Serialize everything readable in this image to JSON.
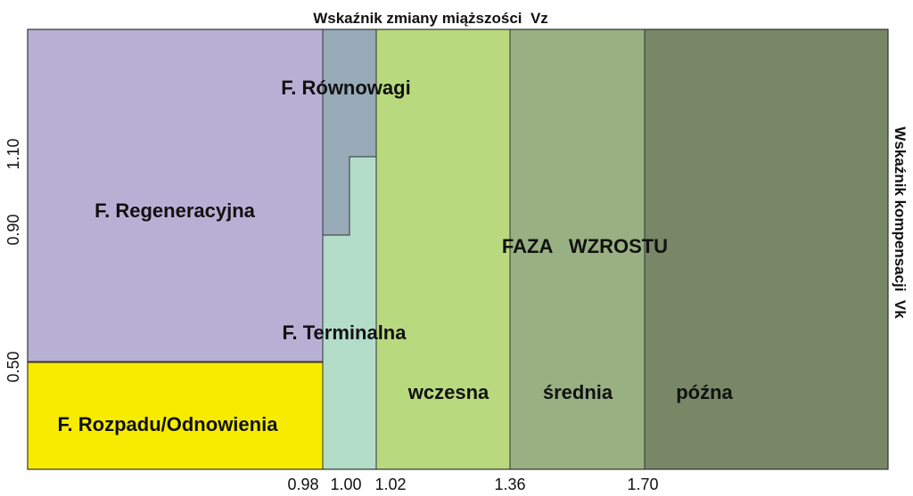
{
  "titles": {
    "top_axis": "Wskaźnik zmiany miąższości  Vz",
    "right_axis": "Wskaźnik kompensacji  Vk"
  },
  "zones": {
    "regeneration": "F. Regeneracyjna",
    "decay": "F. Rozpadu/Odnowienia",
    "equilibrium": "F. Równowagi",
    "terminal": "F. Terminalna",
    "growth": "FAZA   WZROSTU",
    "early": "wczesna",
    "middle": "średnia",
    "late": "późna"
  },
  "x_ticks": [
    "0.98",
    "1.00",
    "1.02",
    "1.36",
    "1.70"
  ],
  "y_ticks": [
    "1.10",
    "0.90",
    "0.50"
  ],
  "colors": {
    "regeneration": "#b8b0d4",
    "decay": "#f7ec00",
    "equilibrium": "#96aab8",
    "terminal": "#b3dcc9",
    "growth_early": "#b8d97d",
    "growth_middle": "#99b083",
    "growth_late": "#788766"
  }
}
